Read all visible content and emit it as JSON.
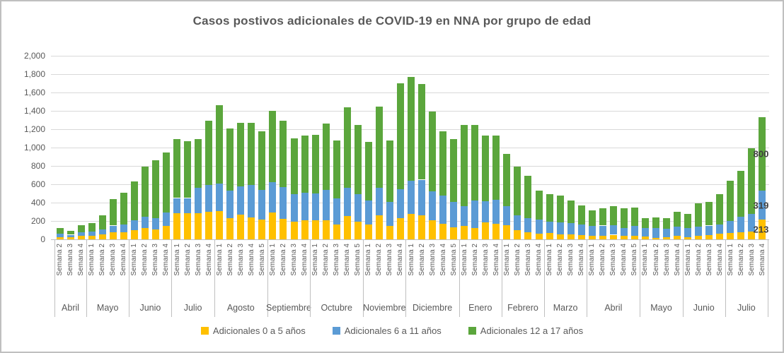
{
  "title": "Casos postivos adicionales de COVID-19 en NNA por grupo de edad",
  "chart_data": {
    "type": "bar",
    "stacked": true,
    "title": "Casos postivos adicionales de COVID-19 en NNA por grupo de edad",
    "grid": true,
    "legend_position": "bottom",
    "y_axis": {
      "min": 0,
      "max": 2000,
      "step": 200,
      "tick_labels": [
        "0",
        "200",
        "400",
        "600",
        "800",
        "1,000",
        "1,200",
        "1,400",
        "1,600",
        "1,800",
        "2,000"
      ]
    },
    "x_axis": {
      "months": [
        {
          "label": "Abril",
          "weeks": [
            "Semana 2",
            "Semana 3",
            "Semana 4"
          ]
        },
        {
          "label": "Mayo",
          "weeks": [
            "Semana 1",
            "Semana 2",
            "Semana 3",
            "Semana 4"
          ]
        },
        {
          "label": "Junio",
          "weeks": [
            "Semana 1",
            "Semana 2",
            "Semana 3",
            "Semana 4"
          ]
        },
        {
          "label": "Julio",
          "weeks": [
            "Semana 1",
            "Semana 2",
            "Semana 3",
            "Semana 4"
          ]
        },
        {
          "label": "Agosto",
          "weeks": [
            "Semana 1",
            "Semana 2",
            "Semana 3",
            "Semana 4",
            "Semana 5"
          ]
        },
        {
          "label": "Septiembre",
          "weeks": [
            "Semana 1",
            "Semana 2",
            "Semana 3",
            "Semana 4"
          ]
        },
        {
          "label": "Octubre",
          "weeks": [
            "Semana 1",
            "Semana 2",
            "Semana 3",
            "Semana 4",
            "Semana 5"
          ]
        },
        {
          "label": "Noviembre",
          "weeks": [
            "Semana 1",
            "Semana 2",
            "Semana 3",
            "Semana 4"
          ]
        },
        {
          "label": "Diciembre",
          "weeks": [
            "Semana 1",
            "Semana 2",
            "Semana 3",
            "Semana 4",
            "Semana 5"
          ]
        },
        {
          "label": "Enero",
          "weeks": [
            "Semana 1",
            "Semana 2",
            "Semana 3",
            "Semana 4"
          ]
        },
        {
          "label": "Febrero",
          "weeks": [
            "Semana 1",
            "Semana 2",
            "Semana 3",
            "Semana 4"
          ]
        },
        {
          "label": "Marzo",
          "weeks": [
            "Semana 1",
            "Semana 2",
            "Semana 3",
            "Semana 4"
          ]
        },
        {
          "label": "Abril",
          "weeks": [
            "Semana 1",
            "Semana 2",
            "Semana 3",
            "Semana 4",
            "Semana 5"
          ]
        },
        {
          "label": "Mayo",
          "weeks": [
            "Semana 1",
            "Semana 2",
            "Semana 3",
            "Semana 4"
          ]
        },
        {
          "label": "Junio",
          "weeks": [
            "Semana 1",
            "Semana 2",
            "Semana 3",
            "Semana 4"
          ]
        },
        {
          "label": "Julio",
          "weeks": [
            "Semana 1",
            "Semana 2",
            "Semana 3",
            "Semana 4"
          ]
        }
      ]
    },
    "series": [
      {
        "name": "Adicionales 0 a 5 años",
        "color": "#FFC000",
        "values": [
          25,
          20,
          35,
          40,
          55,
          75,
          80,
          100,
          120,
          110,
          145,
          285,
          285,
          285,
          300,
          310,
          230,
          270,
          240,
          215,
          290,
          225,
          190,
          210,
          205,
          205,
          165,
          255,
          195,
          165,
          260,
          145,
          230,
          280,
          265,
          210,
          170,
          130,
          145,
          125,
          185,
          170,
          155,
          100,
          80,
          60,
          70,
          55,
          55,
          45,
          40,
          35,
          50,
          35,
          40,
          30,
          15,
          20,
          35,
          20,
          40,
          45,
          60,
          70,
          75,
          85,
          213
        ]
      },
      {
        "name": "Adicionales 6 a 11 años",
        "color": "#5B9BD5",
        "values": [
          35,
          30,
          40,
          45,
          55,
          75,
          85,
          105,
          125,
          120,
          145,
          165,
          165,
          275,
          290,
          300,
          300,
          310,
          350,
          320,
          330,
          345,
          300,
          300,
          295,
          335,
          285,
          310,
          300,
          260,
          305,
          260,
          320,
          360,
          385,
          310,
          305,
          275,
          215,
          295,
          230,
          260,
          205,
          160,
          150,
          155,
          125,
          130,
          120,
          115,
          105,
          115,
          105,
          90,
          105,
          90,
          105,
          95,
          100,
          105,
          100,
          105,
          100,
          130,
          170,
          195,
          319
        ]
      },
      {
        "name": "Adicionales 12 a 17  años",
        "color": "#5BA63C",
        "values": [
          60,
          40,
          80,
          95,
          150,
          290,
          340,
          425,
          545,
          630,
          660,
          645,
          620,
          535,
          700,
          850,
          680,
          690,
          680,
          645,
          780,
          720,
          610,
          620,
          640,
          720,
          625,
          875,
          750,
          640,
          885,
          670,
          1150,
          1130,
          1040,
          870,
          705,
          685,
          885,
          830,
          715,
          700,
          570,
          530,
          460,
          315,
          295,
          290,
          250,
          210,
          170,
          190,
          205,
          215,
          200,
          110,
          115,
          115,
          165,
          150,
          250,
          260,
          330,
          435,
          505,
          710,
          800
        ]
      }
    ],
    "data_labels": {
      "bar": "last",
      "labels": [
        "213",
        "319",
        "800"
      ]
    }
  }
}
